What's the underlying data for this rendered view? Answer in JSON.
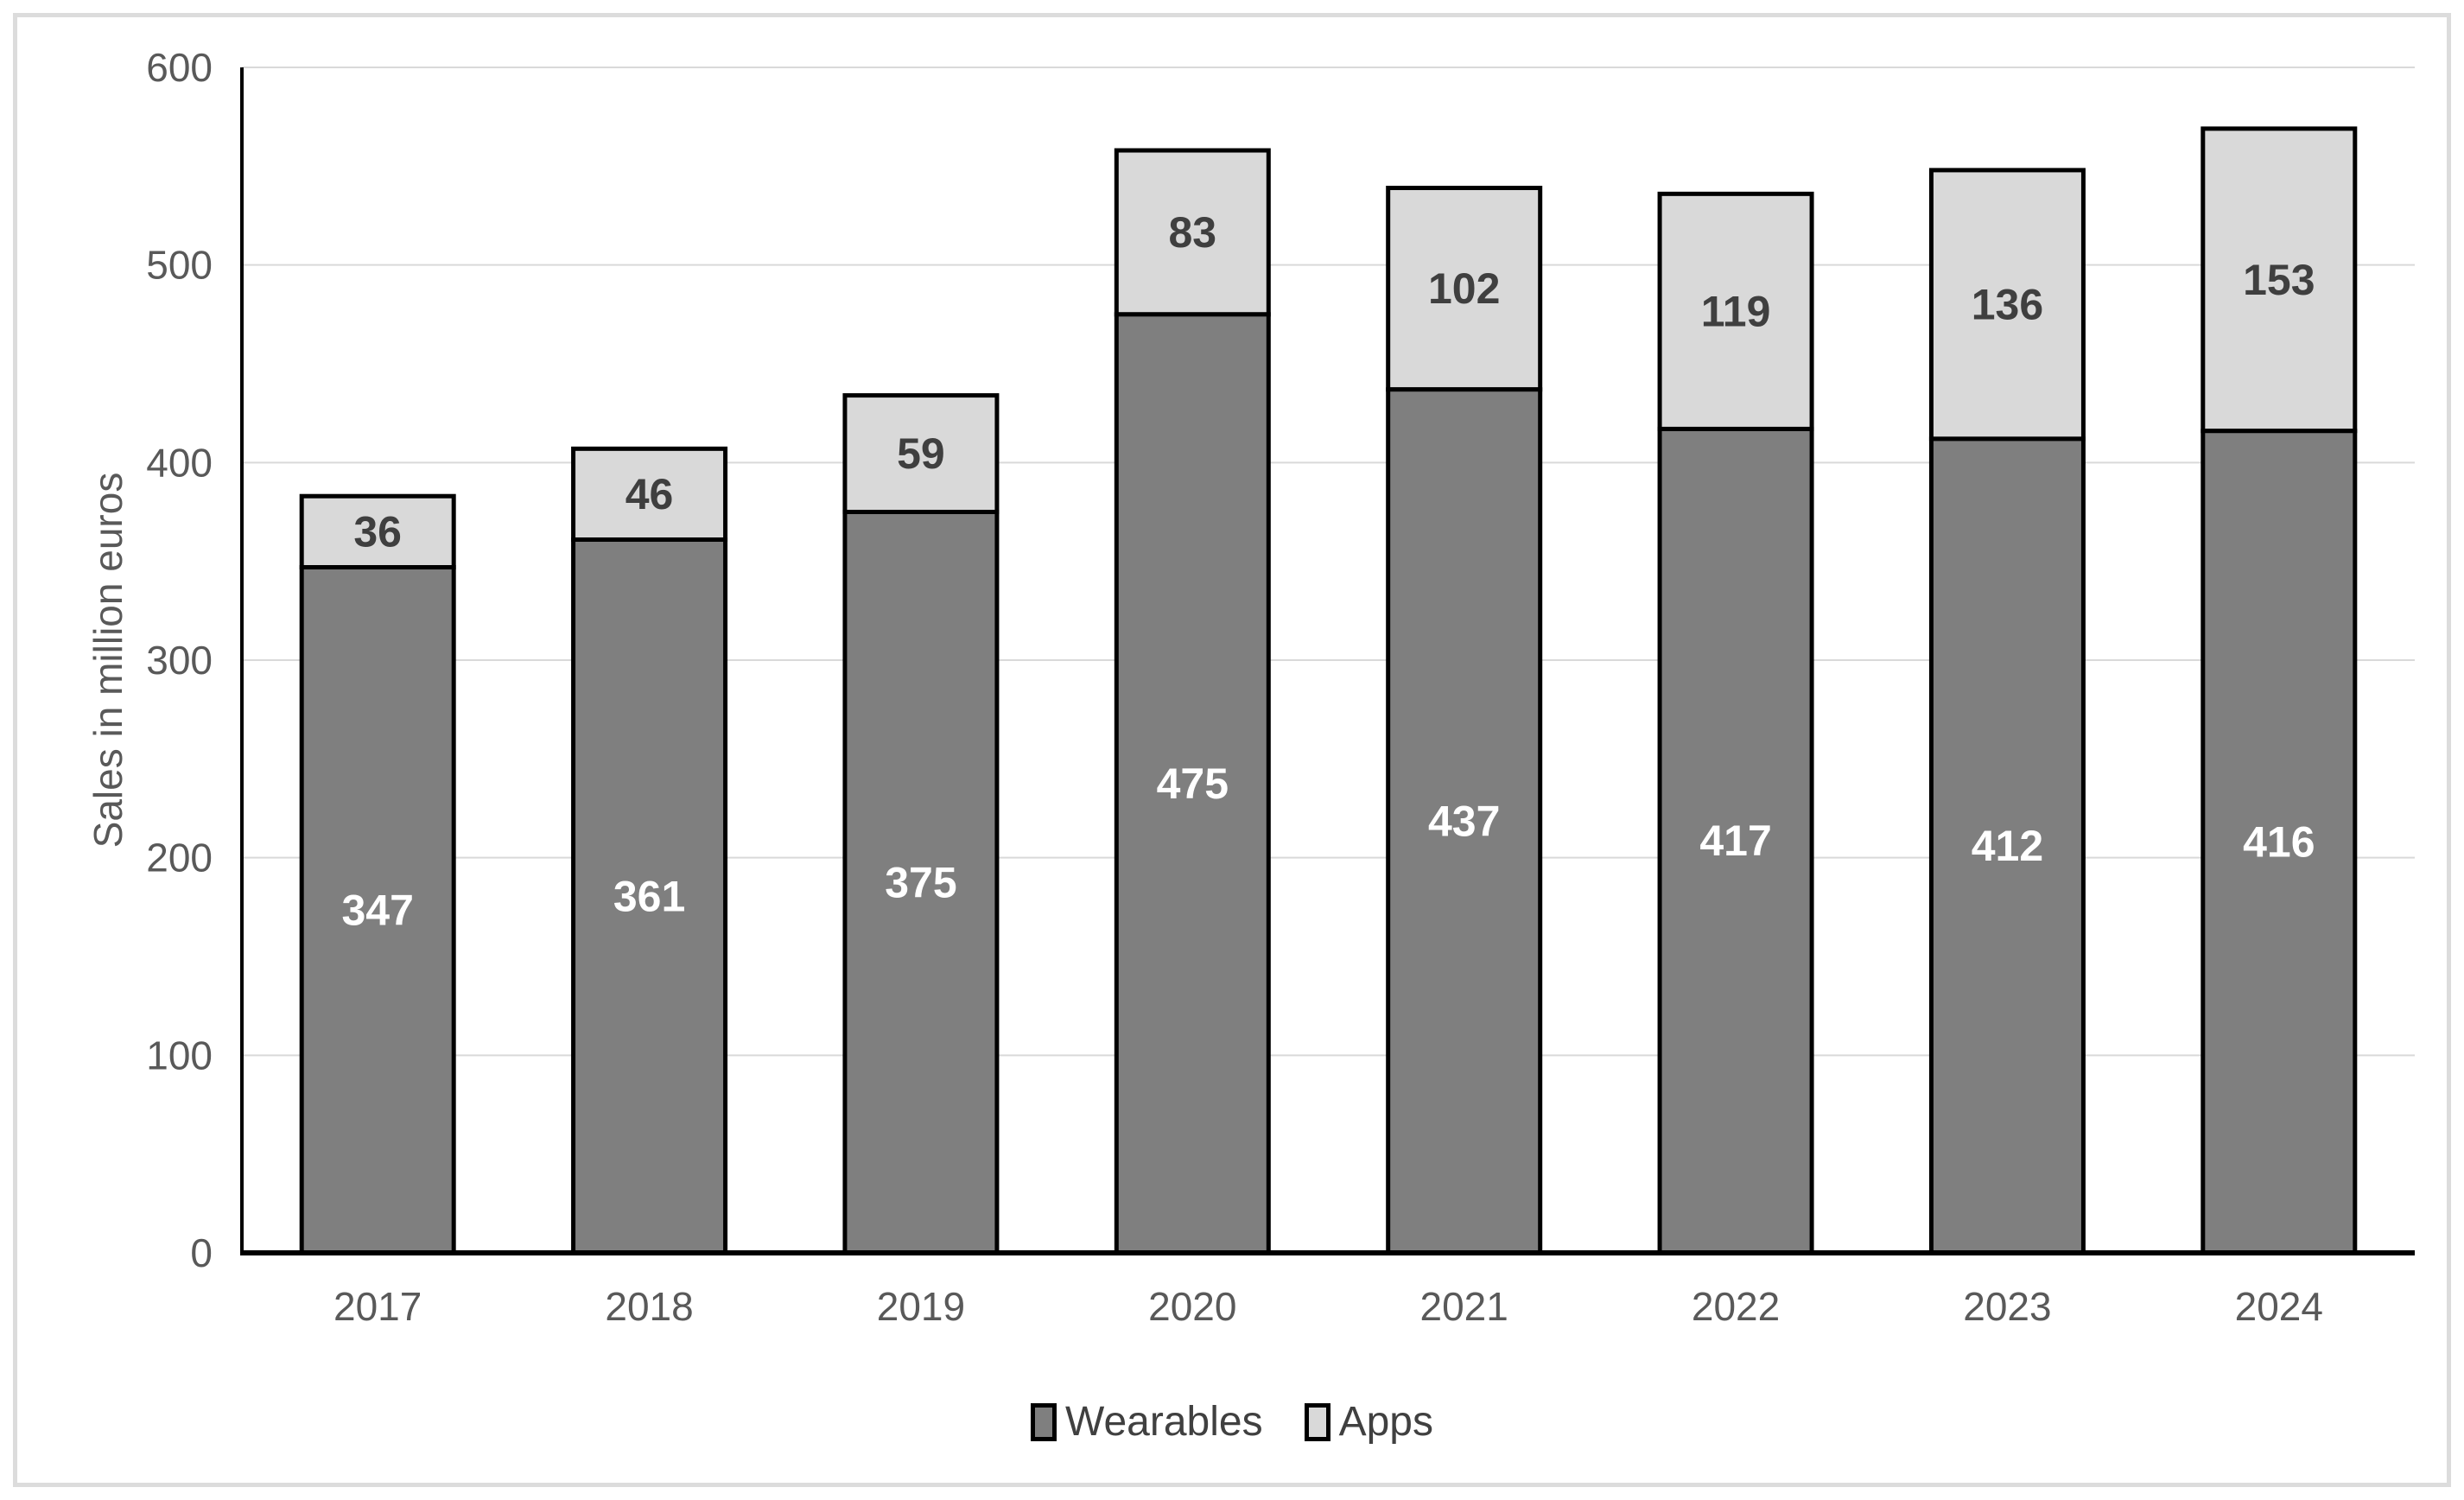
{
  "chart_data": {
    "type": "bar",
    "stacked": true,
    "title": "",
    "xlabel": "",
    "ylabel": "Sales in million euros",
    "categories": [
      "2017",
      "2018",
      "2019",
      "2020",
      "2021",
      "2022",
      "2023",
      "2024"
    ],
    "series": [
      {
        "name": "Wearables",
        "color": "#7f7f7f",
        "label_color": "#ffffff",
        "values": [
          347,
          361,
          375,
          475,
          437,
          417,
          412,
          416
        ]
      },
      {
        "name": "Apps",
        "color": "#d9d9d9",
        "label_color": "#3f3f3f",
        "values": [
          36,
          46,
          59,
          83,
          102,
          119,
          136,
          153
        ]
      }
    ],
    "totals": [
      383,
      407,
      434,
      558,
      539,
      536,
      548,
      569
    ],
    "ylim": [
      0,
      600
    ],
    "yticks": [
      0,
      100,
      200,
      300,
      400,
      500,
      600
    ],
    "grid": true,
    "legend_position": "bottom-center",
    "colors": {
      "bar_border": "#000000",
      "gridline": "#d9d9d9",
      "axis_line": "#000000",
      "tick_label": "#595959",
      "legend_text": "#404040",
      "frame_border": "#dcdcdc",
      "background": "#ffffff"
    }
  }
}
